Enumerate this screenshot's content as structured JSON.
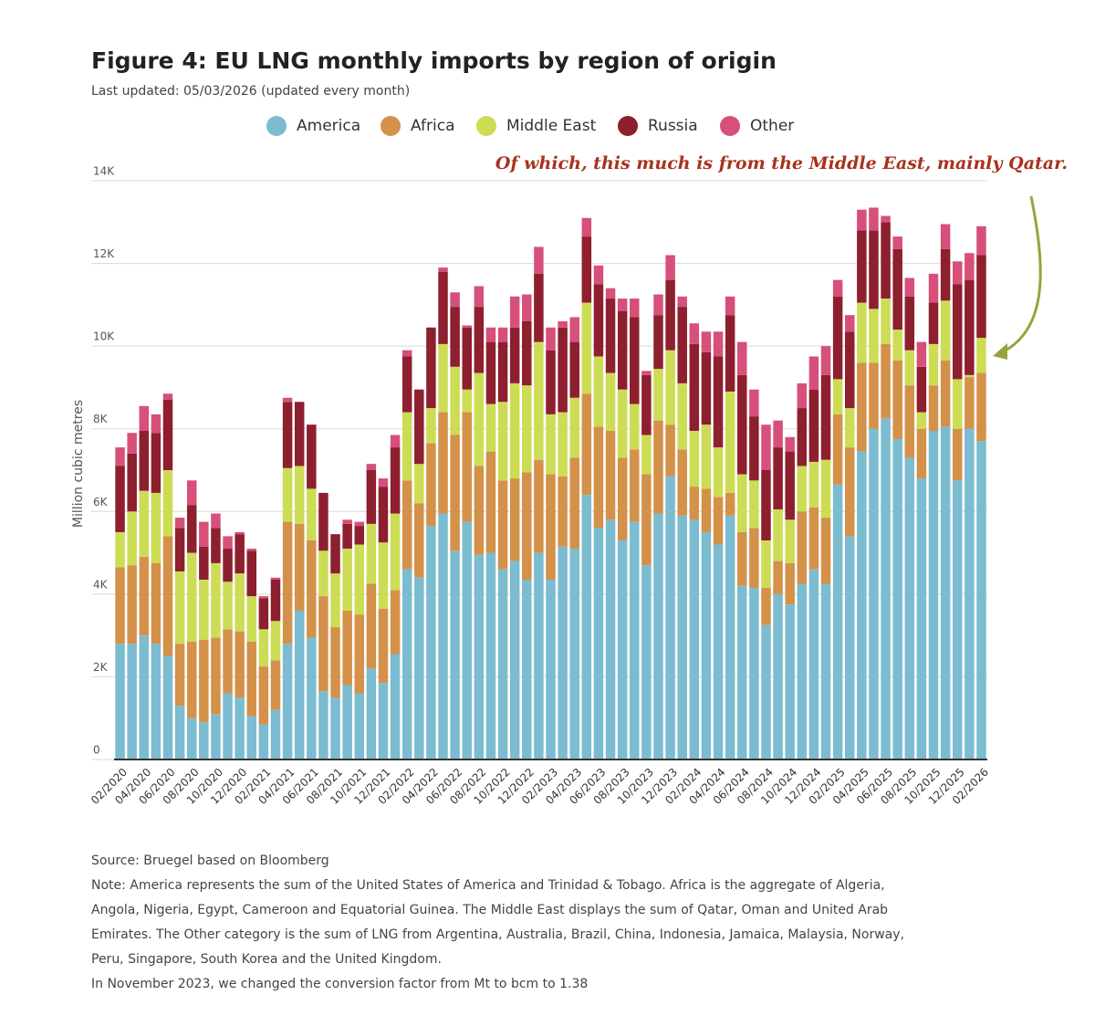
{
  "chart_data": {
    "type": "stacked_bar",
    "title": "Figure 4: EU LNG monthly imports by region of origin",
    "subtitle": "Last updated: 05/03/2026 (updated every month)",
    "annotation": "Of which, this much is from the Middle East, mainly Qatar.",
    "ylabel": "Million cubic metres",
    "categories": [
      "02/2020",
      null,
      "04/2020",
      null,
      "06/2020",
      null,
      "08/2020",
      null,
      "10/2020",
      null,
      "12/2020",
      null,
      "02/2021",
      null,
      "04/2021",
      null,
      "06/2021",
      null,
      "08/2021",
      null,
      "10/2021",
      null,
      "12/2021",
      null,
      "02/2022",
      null,
      "04/2022",
      null,
      "06/2022",
      null,
      "08/2022",
      null,
      "10/2022",
      null,
      "12/2022",
      null,
      "02/2023",
      null,
      "04/2023",
      null,
      "06/2023",
      null,
      "08/2023",
      null,
      "10/2023",
      null,
      "12/2023",
      null,
      "02/2024",
      null,
      "04/2024",
      null,
      "06/2024",
      null,
      "08/2024",
      null,
      "10/2024",
      null,
      "12/2024",
      null,
      "02/2025",
      null,
      "04/2025",
      null,
      "06/2025",
      null,
      "08/2025",
      null,
      "10/2025",
      null,
      "12/2025",
      null,
      "02/2026"
    ],
    "series": [
      {
        "name": "America",
        "color": "#7bbcd0",
        "values": [
          2800,
          2800,
          3000,
          2800,
          2500,
          1300,
          1000,
          900,
          1100,
          1600,
          1500,
          1050,
          850,
          1200,
          2800,
          3600,
          2950,
          1650,
          1500,
          1800,
          1600,
          2200,
          1850,
          2550,
          4600,
          4400,
          5650,
          5950,
          5050,
          5750,
          4950,
          5000,
          4600,
          4800,
          4350,
          5000,
          4350,
          5150,
          5100,
          6400,
          5600,
          5800,
          5300,
          5750,
          4700,
          5950,
          6850,
          5900,
          5800,
          5500,
          5200,
          5900,
          4200,
          4150,
          3250,
          4000,
          3750,
          4250,
          4600,
          4250,
          6650,
          5400,
          7450,
          8000,
          8250,
          7750,
          7300,
          6800,
          7950,
          8050,
          6750,
          8000,
          7700
        ]
      },
      {
        "name": "Africa",
        "color": "#d4914a",
        "values": [
          1850,
          1900,
          1900,
          1950,
          2900,
          1500,
          1850,
          2000,
          1850,
          1550,
          1600,
          1800,
          1400,
          1200,
          2950,
          2100,
          2350,
          2300,
          1700,
          1800,
          1900,
          2050,
          1800,
          1550,
          2150,
          1800,
          2000,
          2450,
          2800,
          2650,
          2150,
          2450,
          2150,
          2000,
          2600,
          2250,
          2550,
          1700,
          2200,
          2450,
          2450,
          2150,
          2000,
          1750,
          2200,
          2250,
          1250,
          1600,
          800,
          1050,
          1150,
          550,
          1300,
          1450,
          900,
          800,
          1000,
          1750,
          1500,
          1600,
          1700,
          2150,
          2150,
          1600,
          1800,
          1900,
          1750,
          1200,
          1100,
          1600,
          1250,
          1250,
          1650
        ]
      },
      {
        "name": "Middle East",
        "color": "#cddc55",
        "values": [
          850,
          1300,
          1600,
          1700,
          1600,
          1750,
          2150,
          1450,
          1800,
          1150,
          1400,
          1100,
          900,
          950,
          1300,
          1400,
          1250,
          1100,
          1300,
          1500,
          1700,
          1450,
          1600,
          1850,
          1650,
          950,
          850,
          1650,
          1650,
          550,
          2250,
          1150,
          1900,
          2300,
          2100,
          2850,
          1450,
          1550,
          1450,
          2200,
          1700,
          1400,
          1650,
          1100,
          950,
          1250,
          1800,
          1600,
          1350,
          1550,
          1200,
          2450,
          1400,
          1150,
          1150,
          1250,
          1050,
          1100,
          1100,
          1400,
          850,
          950,
          1450,
          1300,
          1100,
          750,
          850,
          400,
          1000,
          1450,
          1200,
          50,
          850
        ]
      },
      {
        "name": "Russia",
        "color": "#8d1f2e",
        "values": [
          1600,
          1400,
          1450,
          1450,
          1700,
          1050,
          1150,
          800,
          850,
          800,
          950,
          1100,
          750,
          1000,
          1600,
          1550,
          1550,
          1400,
          950,
          600,
          450,
          1300,
          1350,
          1600,
          1350,
          1800,
          1950,
          1750,
          1450,
          1500,
          1600,
          1500,
          1450,
          1350,
          1550,
          1650,
          1550,
          2050,
          1350,
          1600,
          1750,
          1800,
          1900,
          2100,
          1450,
          1300,
          1700,
          1850,
          2100,
          1750,
          2200,
          1850,
          2400,
          1550,
          1700,
          1500,
          1650,
          1400,
          1750,
          2050,
          2000,
          1850,
          1750,
          1900,
          1850,
          1950,
          1300,
          1100,
          1000,
          1250,
          2300,
          2300,
          2000
        ]
      },
      {
        "name": "Other",
        "color": "#d6507a",
        "values": [
          450,
          500,
          600,
          450,
          150,
          250,
          600,
          600,
          350,
          300,
          50,
          50,
          50,
          50,
          100,
          0,
          0,
          0,
          0,
          100,
          100,
          150,
          200,
          300,
          150,
          0,
          0,
          100,
          350,
          50,
          500,
          350,
          350,
          750,
          650,
          650,
          550,
          150,
          600,
          450,
          450,
          250,
          300,
          450,
          100,
          500,
          600,
          250,
          500,
          500,
          600,
          450,
          800,
          650,
          1100,
          650,
          350,
          600,
          800,
          700,
          400,
          400,
          500,
          550,
          150,
          300,
          450,
          600,
          700,
          600,
          550,
          650,
          700
        ]
      }
    ],
    "ylim": [
      0,
      14000
    ],
    "yticks": [
      0,
      {
        "value": 2000,
        "label": "2K"
      },
      {
        "value": 4000,
        "label": "4K"
      },
      {
        "value": 6000,
        "label": "6K"
      },
      {
        "value": 8000,
        "label": "8K"
      },
      {
        "value": 10000,
        "label": "10K"
      },
      {
        "value": 12000,
        "label": "12K"
      },
      {
        "value": 14000,
        "label": "14K"
      }
    ],
    "grid": true,
    "source": "Source: Bruegel based on Bloomberg",
    "note_lines": [
      "Note: America represents the sum of the United States of America and Trinidad & Tobago. Africa is the aggregate of Algeria,",
      "Angola, Nigeria, Egypt, Cameroon and Equatorial Guinea. The Middle East displays the sum of Qatar, Oman and United Arab",
      "Emirates. The Other category is the sum of LNG from Argentina, Australia, Brazil, China, Indonesia, Jamaica, Malaysia, Norway,",
      "Peru, Singapore, South Korea and the United Kingdom.",
      "In November 2023, we changed the conversion factor from Mt to bcm to 1.38"
    ]
  }
}
